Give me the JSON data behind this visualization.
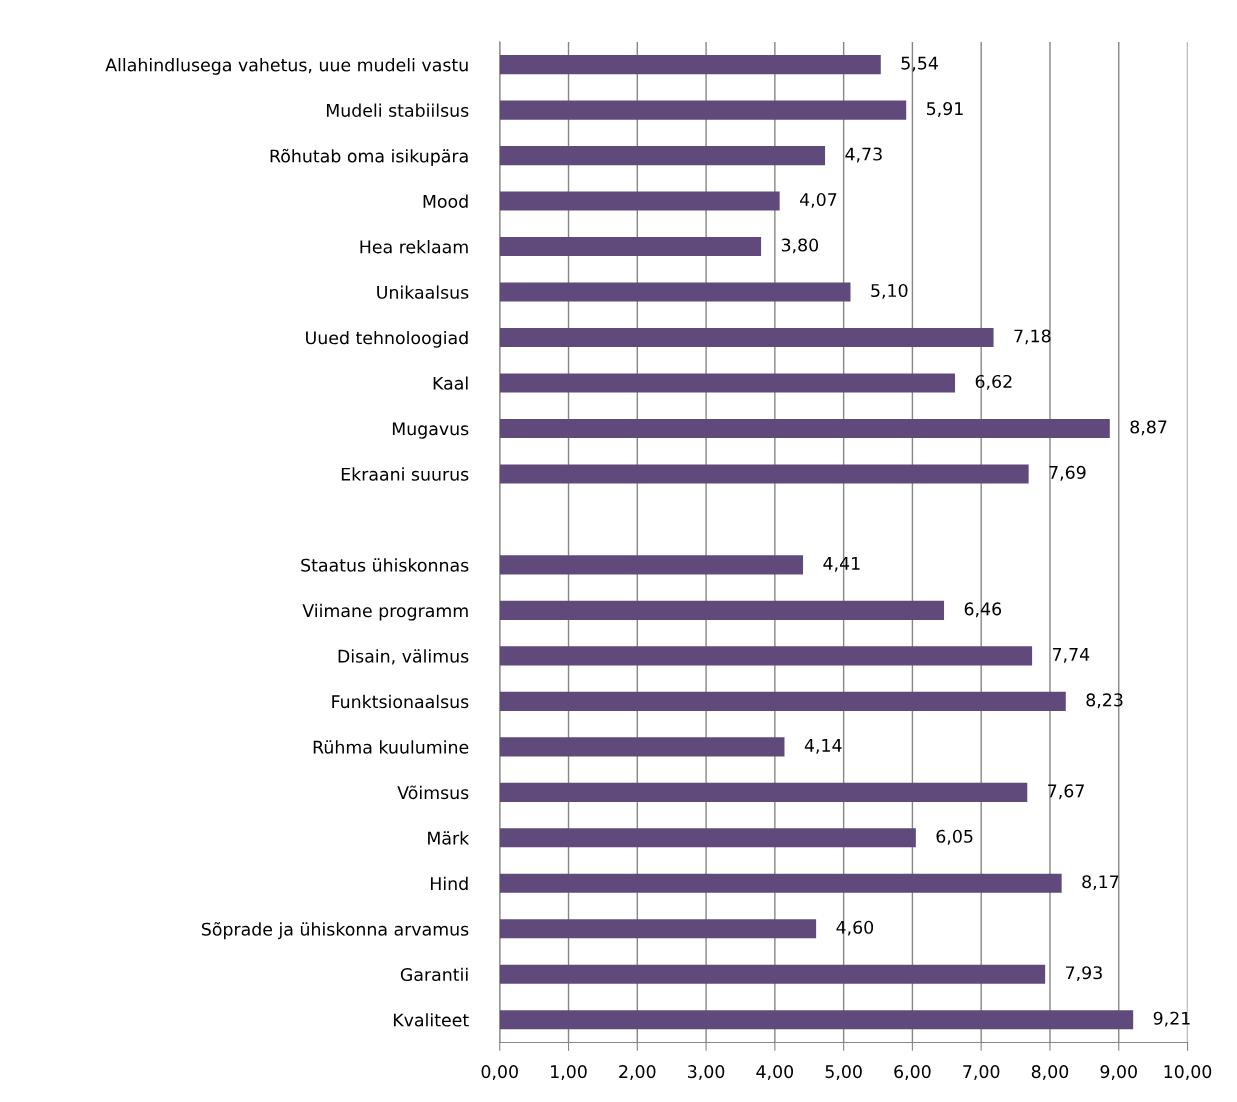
{
  "chart_data": {
    "type": "bar",
    "orientation": "horizontal",
    "color": "#604a7b",
    "categories": [
      "Allahindlusega vahetus, uue mudeli vastu",
      "Mudeli stabiilsus",
      "Rõhutab oma isikupära",
      "Mood",
      "Hea reklaam",
      "Unikaalsus",
      "Uued tehnoloogiad",
      "Kaal",
      "Mugavus",
      "Ekraani suurus",
      null,
      "Staatus ühiskonnas",
      "Viimane programm",
      "Disain, välimus",
      "Funktsionaalsus",
      "Rühma kuulumine",
      "Võimsus",
      "Märk",
      "Hind",
      "Sõprade ja ühiskonna arvamus",
      "Garantii",
      "Kvaliteet"
    ],
    "values": [
      5.54,
      5.91,
      4.73,
      4.07,
      3.8,
      5.1,
      7.18,
      6.62,
      8.87,
      7.69,
      null,
      4.41,
      6.46,
      7.74,
      8.23,
      4.14,
      7.67,
      6.05,
      8.17,
      4.6,
      7.93,
      9.21
    ],
    "value_labels": [
      "5,54",
      "5,91",
      "4,73",
      "4,07",
      "3,80",
      "5,10",
      "7,18",
      "6,62",
      "8,87",
      "7,69",
      null,
      "4,41",
      "6,46",
      "7,74",
      "8,23",
      "4,14",
      "7,67",
      "6,05",
      "8,17",
      "4,60",
      "7,93",
      "9,21"
    ],
    "xlim": [
      0,
      10
    ],
    "xticks": [
      {
        "value": 0,
        "label": "0,00"
      },
      {
        "value": 1,
        "label": "1,00"
      },
      {
        "value": 2,
        "label": "2,00"
      },
      {
        "value": 3,
        "label": "3,00"
      },
      {
        "value": 4,
        "label": "4,00"
      },
      {
        "value": 5,
        "label": "5,00"
      },
      {
        "value": 6,
        "label": "6,00"
      },
      {
        "value": 7,
        "label": "7,00"
      },
      {
        "value": 8,
        "label": "8,00"
      },
      {
        "value": 9,
        "label": "9,00"
      },
      {
        "value": 10,
        "label": "10,00"
      }
    ],
    "grid": "x"
  }
}
